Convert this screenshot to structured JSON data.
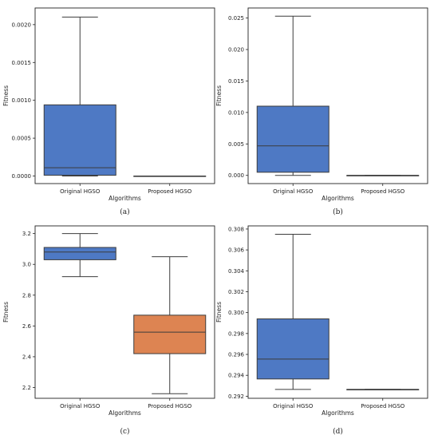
{
  "colors": {
    "blue": "#4e79c4",
    "orange": "#dd8452",
    "line": "#3c3c3c",
    "frame": "#222222"
  },
  "chart_data": [
    {
      "type": "box",
      "caption": "(a)",
      "xlabel": "Algorithms",
      "ylabel": "Fitness",
      "ylim": [
        -0.0001,
        0.00222
      ],
      "yticks": [
        0.0,
        0.0005,
        0.001,
        0.0015,
        0.002
      ],
      "ytick_labels": [
        "0.0000",
        "0.0005",
        "0.0010",
        "0.0015",
        "0.0020"
      ],
      "categories": [
        "Original HGSO",
        "Proposed HGSO"
      ],
      "boxes": [
        {
          "color": "#4e79c4",
          "whislo": 0.0,
          "q1": 1e-05,
          "med": 0.00011,
          "q3": 0.00094,
          "whishi": 0.0021
        },
        {
          "color": "#dd8452",
          "whislo": 0.0,
          "q1": 0.0,
          "med": 0.0,
          "q3": 0.0,
          "whishi": 0.0
        }
      ]
    },
    {
      "type": "box",
      "caption": "(b)",
      "xlabel": "Algorithms",
      "ylabel": "Fitness",
      "ylim": [
        -0.0013,
        0.0266
      ],
      "yticks": [
        0.0,
        0.005,
        0.01,
        0.015,
        0.02,
        0.025
      ],
      "ytick_labels": [
        "0.000",
        "0.005",
        "0.010",
        "0.015",
        "0.020",
        "0.025"
      ],
      "categories": [
        "Original HGSO",
        "Proposed HGSO"
      ],
      "boxes": [
        {
          "color": "#4e79c4",
          "whislo": 0.0,
          "q1": 0.0005,
          "med": 0.0047,
          "q3": 0.011,
          "whishi": 0.0253
        },
        {
          "color": "#dd8452",
          "whislo": 0.0,
          "q1": 0.0,
          "med": 0.0,
          "q3": 0.0,
          "whishi": 0.0
        }
      ]
    },
    {
      "type": "box",
      "caption": "(c)",
      "xlabel": "Algorithms",
      "ylabel": "Fitness",
      "ylim": [
        2.13,
        3.25
      ],
      "yticks": [
        2.2,
        2.4,
        2.6,
        2.8,
        3.0,
        3.2
      ],
      "ytick_labels": [
        "2.2",
        "2.4",
        "2.6",
        "2.8",
        "3.0",
        "3.2"
      ],
      "categories": [
        "Original HGSO",
        "Proposed HGSO"
      ],
      "boxes": [
        {
          "color": "#4e79c4",
          "whislo": 2.92,
          "q1": 3.03,
          "med": 3.08,
          "q3": 3.11,
          "whishi": 3.2
        },
        {
          "color": "#dd8452",
          "whislo": 2.16,
          "q1": 2.42,
          "med": 2.56,
          "q3": 2.67,
          "whishi": 3.05
        }
      ]
    },
    {
      "type": "box",
      "caption": "(d)",
      "xlabel": "Algorithms",
      "ylabel": "Fitness",
      "ylim": [
        0.2918,
        0.3083
      ],
      "yticks": [
        0.292,
        0.294,
        0.296,
        0.298,
        0.3,
        0.302,
        0.304,
        0.306,
        0.308
      ],
      "ytick_labels": [
        "0.292",
        "0.294",
        "0.296",
        "0.298",
        "0.300",
        "0.302",
        "0.304",
        "0.306",
        "0.308"
      ],
      "categories": [
        "Original HGSO",
        "Proposed HGSO"
      ],
      "boxes": [
        {
          "color": "#4e79c4",
          "whislo": 0.29265,
          "q1": 0.29365,
          "med": 0.29555,
          "q3": 0.2994,
          "whishi": 0.3075
        },
        {
          "color": "#dd8452",
          "whislo": 0.29265,
          "q1": 0.29265,
          "med": 0.29265,
          "q3": 0.29265,
          "whishi": 0.29265
        }
      ]
    }
  ]
}
